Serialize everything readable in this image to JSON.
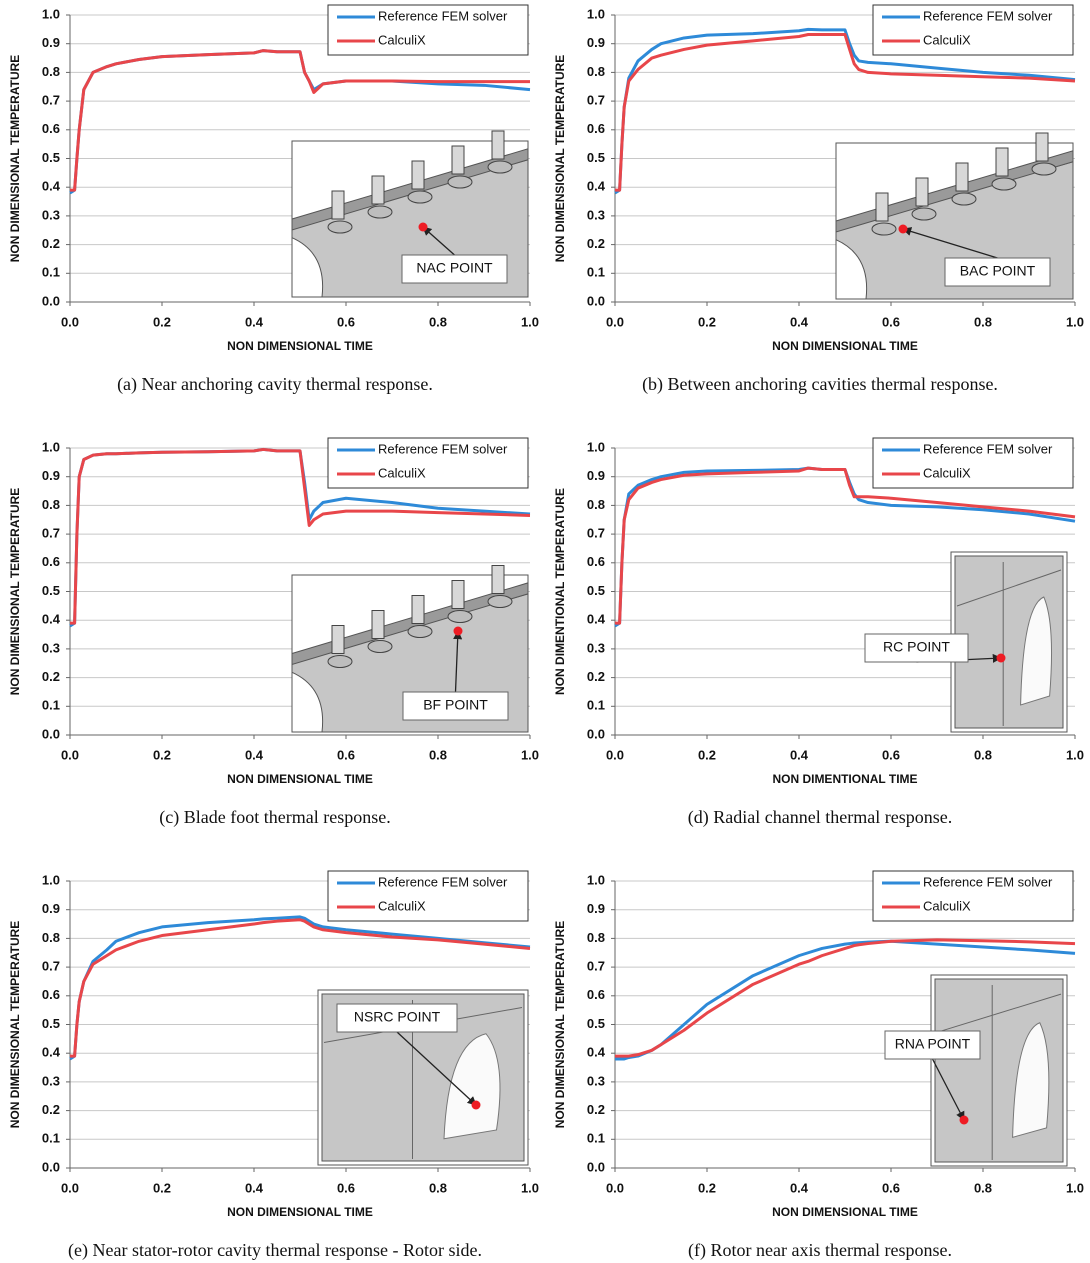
{
  "chart_data": [
    {
      "type": "line",
      "caption": "(a)  Near anchoring cavity thermal response.",
      "xlabel": "NON DIMENSIONAL TIME",
      "ylabel": "NON DIMENSIONAL TEMPERATURE",
      "annotation": "NAC POINT",
      "x": [
        0,
        0.01,
        0.015,
        0.02,
        0.03,
        0.05,
        0.08,
        0.1,
        0.15,
        0.2,
        0.3,
        0.4,
        0.42,
        0.45,
        0.5,
        0.51,
        0.52,
        0.53,
        0.55,
        0.6,
        0.7,
        0.8,
        0.9,
        1.0
      ],
      "series": [
        {
          "name": "Reference FEM solver",
          "color": "#2e8ad8",
          "values": [
            0.38,
            0.39,
            0.5,
            0.6,
            0.74,
            0.8,
            0.82,
            0.83,
            0.845,
            0.855,
            0.862,
            0.868,
            0.876,
            0.872,
            0.872,
            0.8,
            0.77,
            0.74,
            0.76,
            0.77,
            0.77,
            0.76,
            0.755,
            0.74
          ]
        },
        {
          "name": "CalculiX",
          "color": "#e8464a",
          "values": [
            0.39,
            0.39,
            0.5,
            0.6,
            0.74,
            0.8,
            0.82,
            0.83,
            0.845,
            0.855,
            0.862,
            0.868,
            0.876,
            0.872,
            0.872,
            0.8,
            0.77,
            0.73,
            0.76,
            0.77,
            0.77,
            0.768,
            0.768,
            0.768
          ]
        }
      ],
      "xlim": [
        0,
        1
      ],
      "ylim": [
        0,
        1
      ],
      "grid": true,
      "xticks": [
        {
          "value": 0,
          "label": "0.0"
        },
        0.2,
        0.4,
        0.6,
        0.8,
        {
          "value": 1,
          "label": "1.0"
        }
      ],
      "yticks": [
        {
          "value": 0,
          "label": "0.0"
        },
        0.1,
        0.2,
        0.3,
        0.4,
        0.5,
        0.6,
        0.7,
        0.8,
        0.9,
        {
          "value": 1,
          "label": "1.0"
        }
      ]
    },
    {
      "type": "line",
      "caption": "(b)  Between anchoring cavities thermal response.",
      "xlabel": "NON DIMENSIONAL TIME",
      "ylabel": "NON DIMENSIONAL TEMPERATURE",
      "annotation": "BAC POINT",
      "x": [
        0,
        0.01,
        0.015,
        0.02,
        0.03,
        0.05,
        0.08,
        0.1,
        0.15,
        0.2,
        0.3,
        0.4,
        0.42,
        0.45,
        0.5,
        0.51,
        0.52,
        0.53,
        0.55,
        0.6,
        0.7,
        0.8,
        0.9,
        1.0
      ],
      "series": [
        {
          "name": "Reference FEM solver",
          "color": "#2e8ad8",
          "values": [
            0.38,
            0.39,
            0.55,
            0.68,
            0.78,
            0.84,
            0.88,
            0.9,
            0.92,
            0.93,
            0.935,
            0.945,
            0.95,
            0.948,
            0.948,
            0.9,
            0.86,
            0.84,
            0.835,
            0.83,
            0.815,
            0.8,
            0.79,
            0.775
          ]
        },
        {
          "name": "CalculiX",
          "color": "#e8464a",
          "values": [
            0.39,
            0.39,
            0.55,
            0.68,
            0.77,
            0.81,
            0.85,
            0.86,
            0.88,
            0.895,
            0.91,
            0.925,
            0.932,
            0.932,
            0.932,
            0.88,
            0.83,
            0.81,
            0.8,
            0.795,
            0.79,
            0.785,
            0.78,
            0.77
          ]
        }
      ],
      "xlim": [
        0,
        1
      ],
      "ylim": [
        0,
        1
      ],
      "grid": true,
      "xticks": [
        {
          "value": 0,
          "label": "0.0"
        },
        0.2,
        0.4,
        0.6,
        0.8,
        {
          "value": 1,
          "label": "1.0"
        }
      ],
      "yticks": [
        {
          "value": 0,
          "label": "0.0"
        },
        0.1,
        0.2,
        0.3,
        0.4,
        0.5,
        0.6,
        0.7,
        0.8,
        0.9,
        {
          "value": 1,
          "label": "1.0"
        }
      ]
    },
    {
      "type": "line",
      "caption": "(c)  Blade foot thermal response.",
      "xlabel": "NON DIMENSIONAL TIME",
      "ylabel": "NON DIMENSIONAL TEMPERATURE",
      "annotation": "BF POINT",
      "x": [
        0,
        0.01,
        0.015,
        0.02,
        0.03,
        0.05,
        0.08,
        0.1,
        0.15,
        0.2,
        0.3,
        0.4,
        0.42,
        0.45,
        0.5,
        0.51,
        0.52,
        0.53,
        0.55,
        0.6,
        0.7,
        0.8,
        0.9,
        1.0
      ],
      "series": [
        {
          "name": "Reference FEM solver",
          "color": "#2e8ad8",
          "values": [
            0.38,
            0.39,
            0.7,
            0.9,
            0.96,
            0.975,
            0.98,
            0.98,
            0.983,
            0.985,
            0.987,
            0.99,
            0.995,
            0.99,
            0.99,
            0.88,
            0.75,
            0.78,
            0.81,
            0.825,
            0.81,
            0.79,
            0.78,
            0.77
          ]
        },
        {
          "name": "CalculiX",
          "color": "#e8464a",
          "values": [
            0.39,
            0.39,
            0.7,
            0.9,
            0.96,
            0.975,
            0.98,
            0.98,
            0.983,
            0.985,
            0.987,
            0.99,
            0.995,
            0.99,
            0.99,
            0.86,
            0.73,
            0.75,
            0.77,
            0.78,
            0.78,
            0.775,
            0.77,
            0.765
          ]
        }
      ],
      "xlim": [
        0,
        1
      ],
      "ylim": [
        0,
        1
      ],
      "grid": true,
      "xticks": [
        {
          "value": 0,
          "label": "0.0"
        },
        0.2,
        0.4,
        0.6,
        0.8,
        {
          "value": 1,
          "label": "1.0"
        }
      ],
      "yticks": [
        {
          "value": 0,
          "label": "0.0"
        },
        0.1,
        0.2,
        0.3,
        0.4,
        0.5,
        0.6,
        0.7,
        0.8,
        0.9,
        {
          "value": 1,
          "label": "1.0"
        }
      ]
    },
    {
      "type": "line",
      "caption": "(d)  Radial channel thermal response.",
      "xlabel": "NON DIMENTIONAL TIME",
      "ylabel": "NON DIMENTIONAL TEMPERATURE",
      "annotation": "RC POINT",
      "x": [
        0,
        0.01,
        0.015,
        0.02,
        0.03,
        0.05,
        0.08,
        0.1,
        0.15,
        0.2,
        0.3,
        0.4,
        0.42,
        0.45,
        0.5,
        0.51,
        0.52,
        0.53,
        0.55,
        0.6,
        0.7,
        0.8,
        0.9,
        1.0
      ],
      "series": [
        {
          "name": "Reference FEM solver",
          "color": "#2e8ad8",
          "values": [
            0.38,
            0.39,
            0.6,
            0.75,
            0.84,
            0.87,
            0.89,
            0.9,
            0.915,
            0.92,
            0.922,
            0.925,
            0.93,
            0.925,
            0.925,
            0.88,
            0.84,
            0.82,
            0.81,
            0.8,
            0.795,
            0.785,
            0.77,
            0.745
          ]
        },
        {
          "name": "CalculiX",
          "color": "#e8464a",
          "values": [
            0.39,
            0.39,
            0.6,
            0.75,
            0.82,
            0.86,
            0.88,
            0.89,
            0.905,
            0.91,
            0.915,
            0.92,
            0.93,
            0.925,
            0.925,
            0.87,
            0.83,
            0.83,
            0.83,
            0.825,
            0.81,
            0.795,
            0.78,
            0.76
          ]
        }
      ],
      "xlim": [
        0,
        1
      ],
      "ylim": [
        0,
        1
      ],
      "grid": true,
      "xticks": [
        {
          "value": 0,
          "label": "0.0"
        },
        0.2,
        0.4,
        0.6,
        0.8,
        {
          "value": 1,
          "label": "1.0"
        }
      ],
      "yticks": [
        {
          "value": 0,
          "label": "0.0"
        },
        0.1,
        0.2,
        0.3,
        0.4,
        0.5,
        0.6,
        0.7,
        0.8,
        0.9,
        {
          "value": 1,
          "label": "1.0"
        }
      ]
    },
    {
      "type": "line",
      "caption": "(e)  Near stator-rotor cavity thermal response - Rotor side.",
      "xlabel": "NON DIMENSIONAL TIME",
      "ylabel": "NON DIMENSIONAL TEMPERATURE",
      "annotation": "NSRC POINT",
      "x": [
        0,
        0.01,
        0.015,
        0.02,
        0.03,
        0.05,
        0.08,
        0.1,
        0.15,
        0.2,
        0.3,
        0.4,
        0.42,
        0.45,
        0.5,
        0.51,
        0.52,
        0.53,
        0.55,
        0.6,
        0.7,
        0.8,
        0.9,
        1.0
      ],
      "series": [
        {
          "name": "Reference FEM solver",
          "color": "#2e8ad8",
          "values": [
            0.38,
            0.39,
            0.5,
            0.58,
            0.65,
            0.72,
            0.76,
            0.79,
            0.82,
            0.84,
            0.855,
            0.865,
            0.868,
            0.87,
            0.875,
            0.87,
            0.86,
            0.85,
            0.84,
            0.83,
            0.815,
            0.8,
            0.785,
            0.77
          ]
        },
        {
          "name": "CalculiX",
          "color": "#e8464a",
          "values": [
            0.39,
            0.39,
            0.5,
            0.58,
            0.65,
            0.71,
            0.74,
            0.76,
            0.79,
            0.81,
            0.83,
            0.85,
            0.855,
            0.86,
            0.865,
            0.86,
            0.85,
            0.84,
            0.83,
            0.82,
            0.805,
            0.795,
            0.78,
            0.765
          ]
        }
      ],
      "xlim": [
        0,
        1
      ],
      "ylim": [
        0,
        1
      ],
      "grid": true,
      "xticks": [
        {
          "value": 0,
          "label": "0.0"
        },
        0.2,
        0.4,
        0.6,
        0.8,
        {
          "value": 1,
          "label": "1.0"
        }
      ],
      "yticks": [
        {
          "value": 0,
          "label": "0.0"
        },
        0.1,
        0.2,
        0.3,
        0.4,
        0.5,
        0.6,
        0.7,
        0.8,
        0.9,
        {
          "value": 1,
          "label": "1.0"
        }
      ]
    },
    {
      "type": "line",
      "caption": "(f)  Rotor near axis thermal response.",
      "xlabel": "NON DIMENSIONAL TIME",
      "ylabel": "NON DIMENSIONAL TEMPERATURE",
      "annotation": "RNA POINT",
      "x": [
        0,
        0.01,
        0.015,
        0.02,
        0.03,
        0.05,
        0.08,
        0.1,
        0.15,
        0.2,
        0.3,
        0.4,
        0.42,
        0.45,
        0.5,
        0.51,
        0.52,
        0.53,
        0.55,
        0.6,
        0.7,
        0.8,
        0.9,
        1.0
      ],
      "series": [
        {
          "name": "Reference FEM solver",
          "color": "#2e8ad8",
          "values": [
            0.38,
            0.38,
            0.38,
            0.38,
            0.385,
            0.39,
            0.41,
            0.43,
            0.5,
            0.57,
            0.67,
            0.74,
            0.75,
            0.765,
            0.78,
            0.782,
            0.784,
            0.785,
            0.787,
            0.79,
            0.78,
            0.77,
            0.76,
            0.748
          ]
        },
        {
          "name": "CalculiX",
          "color": "#e8464a",
          "values": [
            0.39,
            0.39,
            0.39,
            0.39,
            0.39,
            0.395,
            0.41,
            0.43,
            0.48,
            0.54,
            0.64,
            0.71,
            0.72,
            0.74,
            0.765,
            0.77,
            0.775,
            0.778,
            0.782,
            0.79,
            0.795,
            0.792,
            0.788,
            0.782
          ]
        }
      ],
      "xlim": [
        0,
        1
      ],
      "ylim": [
        0,
        1
      ],
      "grid": true,
      "xticks": [
        {
          "value": 0,
          "label": "0.0"
        },
        0.2,
        0.4,
        0.6,
        0.8,
        {
          "value": 1,
          "label": "1.0"
        }
      ],
      "yticks": [
        {
          "value": 0,
          "label": "0.0"
        },
        0.1,
        0.2,
        0.3,
        0.4,
        0.5,
        0.6,
        0.7,
        0.8,
        0.9,
        {
          "value": 1,
          "label": "1.0"
        }
      ]
    }
  ]
}
